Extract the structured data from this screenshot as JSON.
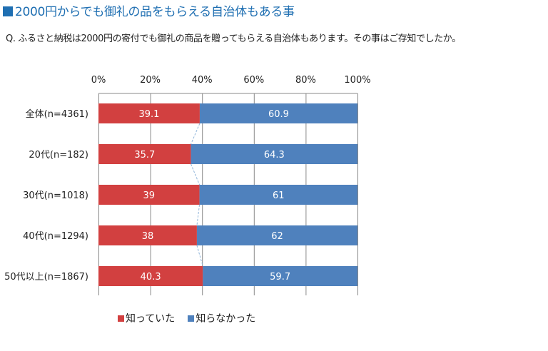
{
  "header": {
    "title": "2000円からでも御礼の品をもらえる自治体もある事",
    "question": "Q. ふるさと納税は2000円の寄付でも御礼の商品を贈ってもらえる自治体もあります。その事はご存知でしたか。"
  },
  "colors": {
    "title": "#1f6fb2",
    "knew": "#d24040",
    "did_not_know": "#4f81bd",
    "grid": "#888888",
    "connector": "#8fb4d9"
  },
  "chart_data": {
    "type": "bar",
    "orientation": "horizontal",
    "stacked": "100%",
    "title": "2000円からでも御礼の品をもらえる自治体もある事",
    "categories": [
      "全体(n=4361)",
      "20代(n=182)",
      "30代(n=1018)",
      "40代(n=1294)",
      "50代以上(n=1867)"
    ],
    "series": [
      {
        "name": "知っていた",
        "values": [
          39.1,
          35.7,
          39,
          38,
          40.3
        ],
        "labels": [
          "39.1",
          "35.7",
          "39",
          "38",
          "40.3"
        ]
      },
      {
        "name": "知らなかった",
        "values": [
          60.9,
          64.3,
          61,
          62,
          59.7
        ],
        "labels": [
          "60.9",
          "64.3",
          "61",
          "62",
          "59.7"
        ]
      }
    ],
    "xlim": [
      0,
      100
    ],
    "xticks": [
      "0%",
      "20%",
      "40%",
      "60%",
      "80%",
      "100%"
    ],
    "xtick_values": [
      0,
      20,
      40,
      60,
      80,
      100
    ],
    "grid": true,
    "series_lines": true,
    "legend": "bottom"
  }
}
